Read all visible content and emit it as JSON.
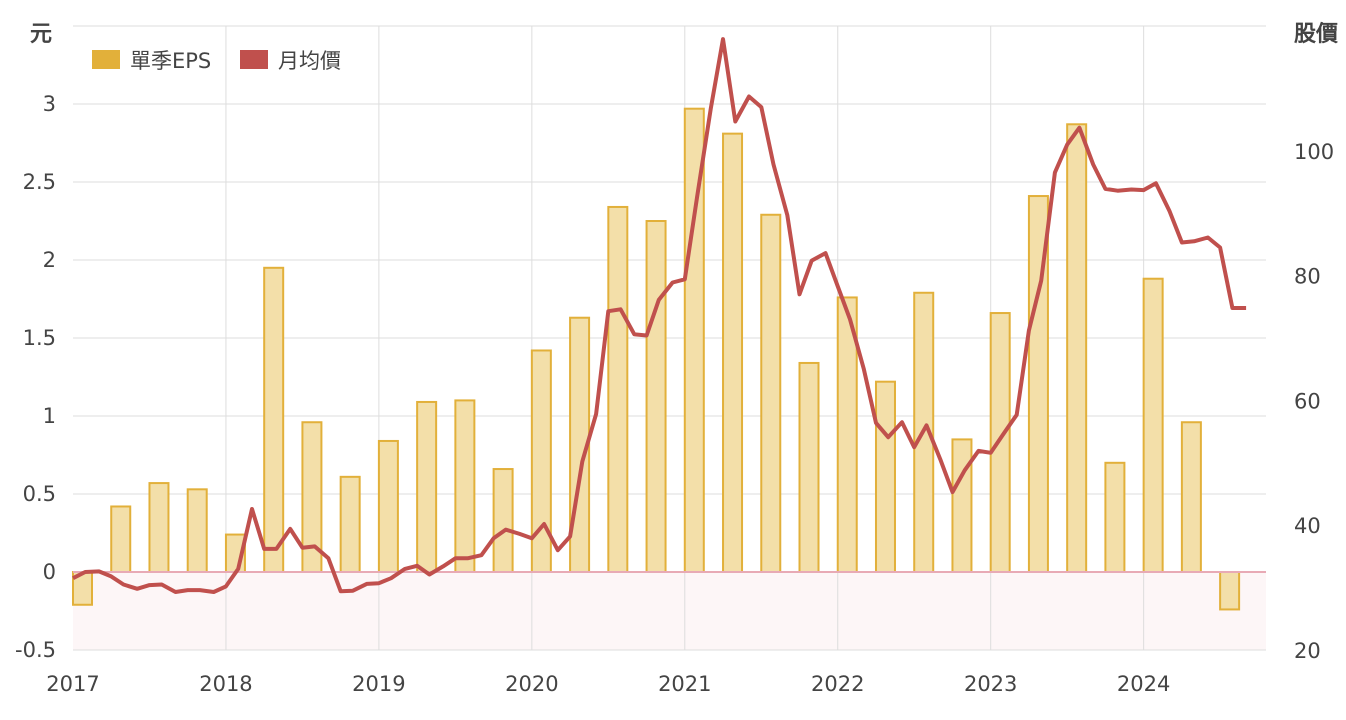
{
  "chart_data": {
    "type": "bar",
    "left_unit": "元",
    "right_unit": "股價",
    "legend": [
      {
        "name": "單季EPS",
        "color": "#e2b03a"
      },
      {
        "name": "月均價",
        "color": "#c0504d"
      }
    ],
    "x_ticks": [
      "2017",
      "2018",
      "2019",
      "2020",
      "2021",
      "2022",
      "2023",
      "2024"
    ],
    "y_left": {
      "min": -0.5,
      "max": 3.5,
      "ticks": [
        "-0.5",
        "0",
        "0.5",
        "1",
        "1.5",
        "2",
        "2.5",
        "3"
      ]
    },
    "y_right": {
      "min": 20,
      "max": 120,
      "ticks": [
        "20",
        "40",
        "60",
        "80",
        "100"
      ]
    },
    "grid": true,
    "negative_zone_color": "#fdf6f7",
    "zero_line_color": "#e8aab5",
    "bar_fill": "#f3dfa9",
    "bar_stroke": "#e2b03a",
    "line_color": "#c0504d",
    "series": [
      {
        "name": "單季EPS",
        "type": "bar",
        "x": [
          2017.0,
          2017.25,
          2017.5,
          2017.75,
          2018.0,
          2018.25,
          2018.5,
          2018.75,
          2019.0,
          2019.25,
          2019.5,
          2019.75,
          2020.0,
          2020.25,
          2020.5,
          2020.75,
          2021.0,
          2021.25,
          2021.5,
          2021.75,
          2022.0,
          2022.25,
          2022.5,
          2022.75,
          2023.0,
          2023.25,
          2023.5,
          2023.75,
          2024.0,
          2024.25,
          2024.5
        ],
        "values": [
          -0.21,
          0.42,
          0.57,
          0.53,
          0.24,
          1.95,
          0.96,
          0.61,
          0.84,
          1.09,
          1.1,
          0.66,
          1.42,
          1.63,
          2.34,
          2.25,
          2.97,
          2.81,
          2.29,
          1.34,
          1.76,
          1.22,
          1.79,
          0.85,
          1.66,
          2.41,
          2.87,
          0.7,
          1.88,
          0.96,
          -0.24
        ]
      },
      {
        "name": "月均價",
        "type": "line",
        "x": [
          2017.0,
          2017.08,
          2017.17,
          2017.25,
          2017.33,
          2017.42,
          2017.5,
          2017.58,
          2017.67,
          2017.75,
          2017.83,
          2017.92,
          2018.0,
          2018.08,
          2018.17,
          2018.25,
          2018.33,
          2018.42,
          2018.5,
          2018.58,
          2018.67,
          2018.75,
          2018.83,
          2018.92,
          2019.0,
          2019.08,
          2019.17,
          2019.25,
          2019.33,
          2019.42,
          2019.5,
          2019.58,
          2019.67,
          2019.75,
          2019.83,
          2019.92,
          2020.0,
          2020.08,
          2020.17,
          2020.25,
          2020.33,
          2020.42,
          2020.5,
          2020.58,
          2020.67,
          2020.75,
          2020.83,
          2020.92,
          2021.0,
          2021.08,
          2021.17,
          2021.25,
          2021.33,
          2021.42,
          2021.5,
          2021.58,
          2021.67,
          2021.75,
          2021.83,
          2021.92,
          2022.0,
          2022.08,
          2022.17,
          2022.25,
          2022.33,
          2022.42,
          2022.5,
          2022.58,
          2022.67,
          2022.75,
          2022.83,
          2022.92,
          2023.0,
          2023.08,
          2023.17,
          2023.25,
          2023.33,
          2023.42,
          2023.5,
          2023.58,
          2023.67,
          2023.75,
          2023.83,
          2023.92,
          2024.0,
          2024.08,
          2024.17,
          2024.25,
          2024.33,
          2024.42,
          2024.5,
          2024.58,
          2024.67
        ],
        "values": [
          31.5,
          32.5,
          32.6,
          31.8,
          30.5,
          29.8,
          30.4,
          30.5,
          29.3,
          29.6,
          29.6,
          29.3,
          30.2,
          33.0,
          42.6,
          36.2,
          36.2,
          39.4,
          36.4,
          36.6,
          34.7,
          29.4,
          29.5,
          30.6,
          30.7,
          31.5,
          33.0,
          33.5,
          32.1,
          33.4,
          34.7,
          34.7,
          35.2,
          37.9,
          39.3,
          38.6,
          37.9,
          40.2,
          36.0,
          38.2,
          50.2,
          57.8,
          74.3,
          74.6,
          70.6,
          70.4,
          76.1,
          78.9,
          79.4,
          92.5,
          106.8,
          117.9,
          104.7,
          108.7,
          107.0,
          97.8,
          89.7,
          77.0,
          82.4,
          83.6,
          78.3,
          73.0,
          65.1,
          56.4,
          54.1,
          56.5,
          52.5,
          56.0,
          50.6,
          45.3,
          48.8,
          51.9,
          51.6,
          54.5,
          57.7,
          71.2,
          79.2,
          96.5,
          101.0,
          103.7,
          97.8,
          93.9,
          93.6,
          93.8,
          93.7,
          94.8,
          90.3,
          85.3,
          85.5,
          86.1,
          84.5,
          74.8,
          74.8
        ]
      }
    ]
  }
}
